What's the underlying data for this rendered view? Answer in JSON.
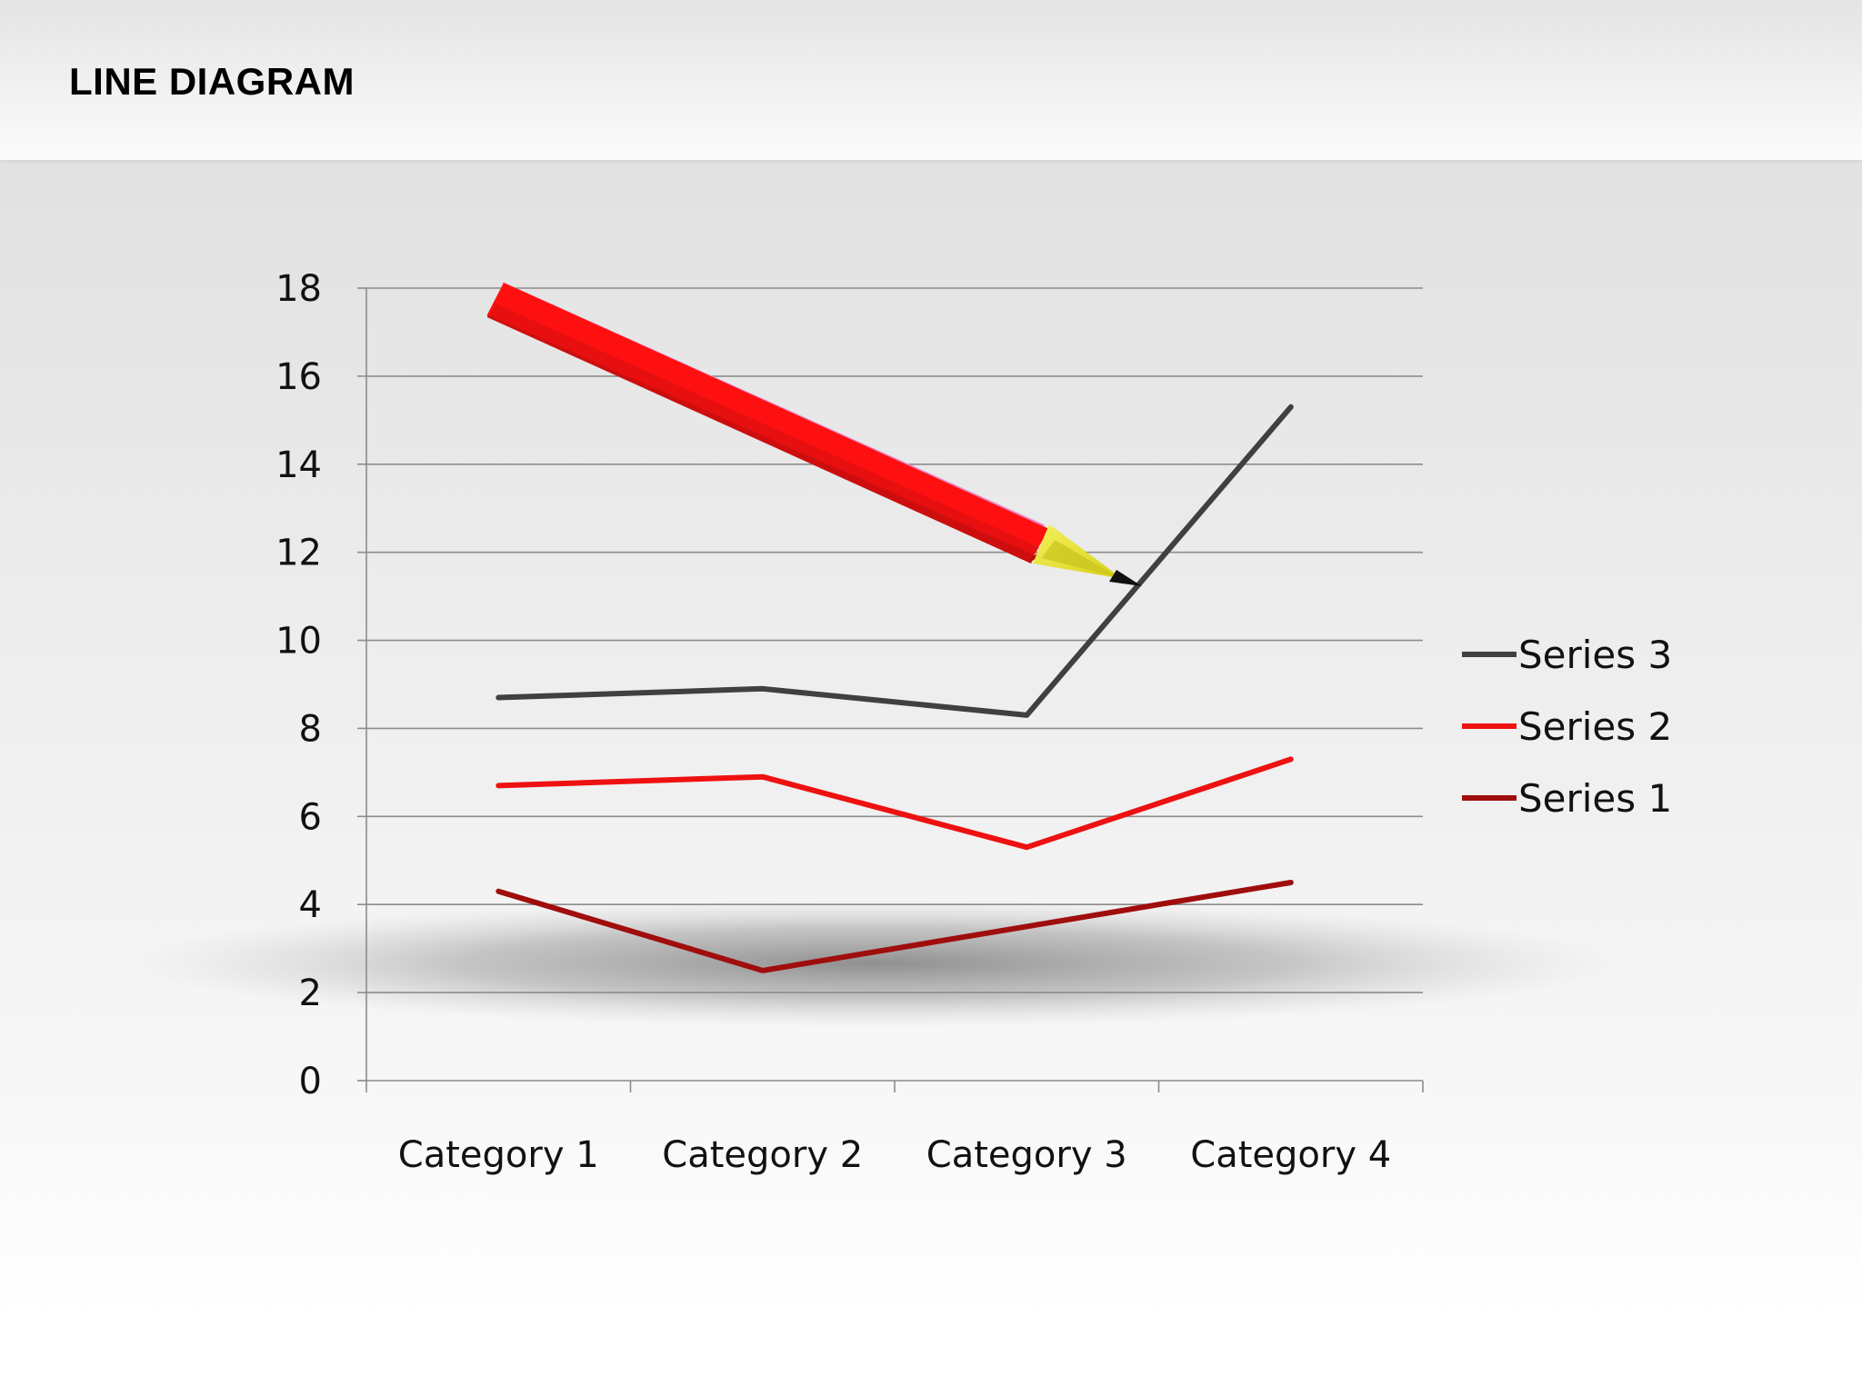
{
  "slide": {
    "title": "LINE DIAGRAM"
  },
  "chart_data": {
    "type": "line",
    "categories": [
      "Category 1",
      "Category 2",
      "Category 3",
      "Category 4"
    ],
    "series": [
      {
        "name": "Series 1",
        "values": [
          4.3,
          2.5,
          3.5,
          4.5
        ],
        "color": "#a00d0d"
      },
      {
        "name": "Series 2",
        "values": [
          6.7,
          6.9,
          5.3,
          7.3
        ],
        "color": "#ee1111"
      },
      {
        "name": "Series 3",
        "values": [
          8.7,
          8.9,
          8.3,
          15.3
        ],
        "color": "#404040"
      }
    ],
    "yticks": [
      "0",
      "2",
      "4",
      "6",
      "8",
      "10",
      "12",
      "14",
      "16",
      "18"
    ],
    "ylim": [
      0,
      18
    ],
    "grid": true,
    "legend": {
      "placement": "right",
      "order": [
        "Series 3",
        "Series 2",
        "Series 1"
      ]
    }
  },
  "decoration": {
    "pencil_icon": "pencil-icon"
  }
}
